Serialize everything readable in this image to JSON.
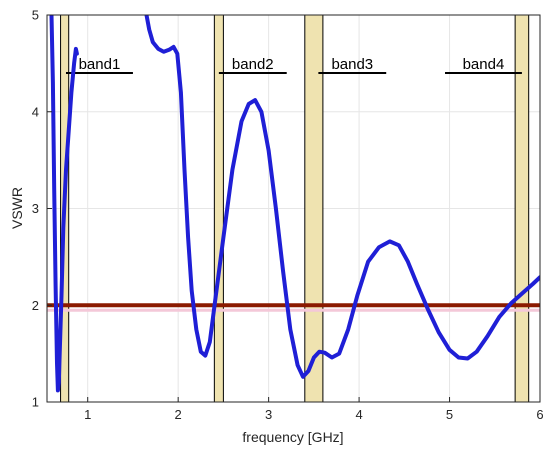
{
  "chart_data": {
    "type": "line",
    "title": "",
    "xlabel": "frequency [GHz]",
    "ylabel": "VSWR",
    "xlim": [
      0.55,
      6.0
    ],
    "ylim": [
      1,
      5
    ],
    "xticks": [
      1,
      2,
      3,
      4,
      5,
      6
    ],
    "yticks": [
      1,
      2,
      3,
      4,
      5
    ],
    "grid": true,
    "reference_line": {
      "y": 2,
      "color": "#8b1a00"
    },
    "shaded_bands": [
      {
        "x0": 0.7,
        "x1": 0.79
      },
      {
        "x0": 2.4,
        "x1": 2.5
      },
      {
        "x0": 3.4,
        "x1": 3.6
      },
      {
        "x0": 5.725,
        "x1": 5.875
      }
    ],
    "band_labels": [
      {
        "text": "band1",
        "x0": 0.76,
        "x1": 1.5,
        "y": 4.4
      },
      {
        "text": "band2",
        "x0": 2.45,
        "x1": 3.2,
        "y": 4.4
      },
      {
        "text": "band3",
        "x0": 3.55,
        "x1": 4.3,
        "y": 4.4
      },
      {
        "text": "band4",
        "x0": 4.95,
        "x1": 5.8,
        "y": 4.4
      }
    ],
    "series": [
      {
        "color": "#1f1fd6",
        "segments": [
          [
            [
              0.6,
              5.0
            ],
            [
              0.615,
              4.3
            ],
            [
              0.63,
              3.2
            ],
            [
              0.645,
              2.2
            ],
            [
              0.66,
              1.4
            ],
            [
              0.67,
              1.12
            ],
            [
              0.68,
              1.2
            ],
            [
              0.69,
              1.5
            ],
            [
              0.71,
              2.1
            ],
            [
              0.73,
              2.8
            ],
            [
              0.76,
              3.4
            ],
            [
              0.79,
              3.8
            ],
            [
              0.82,
              4.2
            ],
            [
              0.85,
              4.5
            ],
            [
              0.87,
              4.65
            ],
            [
              0.88,
              4.6
            ]
          ],
          [
            [
              1.65,
              5.0
            ],
            [
              1.68,
              4.85
            ],
            [
              1.72,
              4.72
            ],
            [
              1.78,
              4.65
            ],
            [
              1.84,
              4.62
            ],
            [
              1.9,
              4.64
            ],
            [
              1.95,
              4.67
            ],
            [
              1.99,
              4.6
            ],
            [
              2.03,
              4.2
            ],
            [
              2.07,
              3.4
            ],
            [
              2.11,
              2.7
            ],
            [
              2.15,
              2.15
            ],
            [
              2.2,
              1.75
            ],
            [
              2.25,
              1.52
            ],
            [
              2.3,
              1.48
            ],
            [
              2.35,
              1.62
            ],
            [
              2.4,
              1.98
            ],
            [
              2.5,
              2.7
            ],
            [
              2.6,
              3.4
            ],
            [
              2.7,
              3.9
            ],
            [
              2.78,
              4.08
            ],
            [
              2.85,
              4.12
            ],
            [
              2.92,
              4.0
            ],
            [
              3.0,
              3.6
            ],
            [
              3.08,
              3.0
            ],
            [
              3.16,
              2.35
            ],
            [
              3.24,
              1.75
            ],
            [
              3.32,
              1.38
            ],
            [
              3.38,
              1.26
            ],
            [
              3.44,
              1.32
            ],
            [
              3.5,
              1.46
            ],
            [
              3.56,
              1.52
            ],
            [
              3.62,
              1.51
            ],
            [
              3.7,
              1.46
            ],
            [
              3.78,
              1.5
            ],
            [
              3.88,
              1.75
            ],
            [
              3.98,
              2.1
            ],
            [
              4.1,
              2.45
            ],
            [
              4.22,
              2.6
            ],
            [
              4.34,
              2.66
            ],
            [
              4.44,
              2.62
            ],
            [
              4.54,
              2.45
            ],
            [
              4.64,
              2.22
            ],
            [
              4.76,
              1.96
            ],
            [
              4.88,
              1.72
            ],
            [
              5.0,
              1.54
            ],
            [
              5.1,
              1.46
            ],
            [
              5.2,
              1.45
            ],
            [
              5.3,
              1.52
            ],
            [
              5.42,
              1.68
            ],
            [
              5.55,
              1.88
            ],
            [
              5.68,
              2.02
            ],
            [
              5.8,
              2.12
            ],
            [
              5.92,
              2.22
            ],
            [
              6.0,
              2.29
            ]
          ]
        ]
      }
    ]
  }
}
